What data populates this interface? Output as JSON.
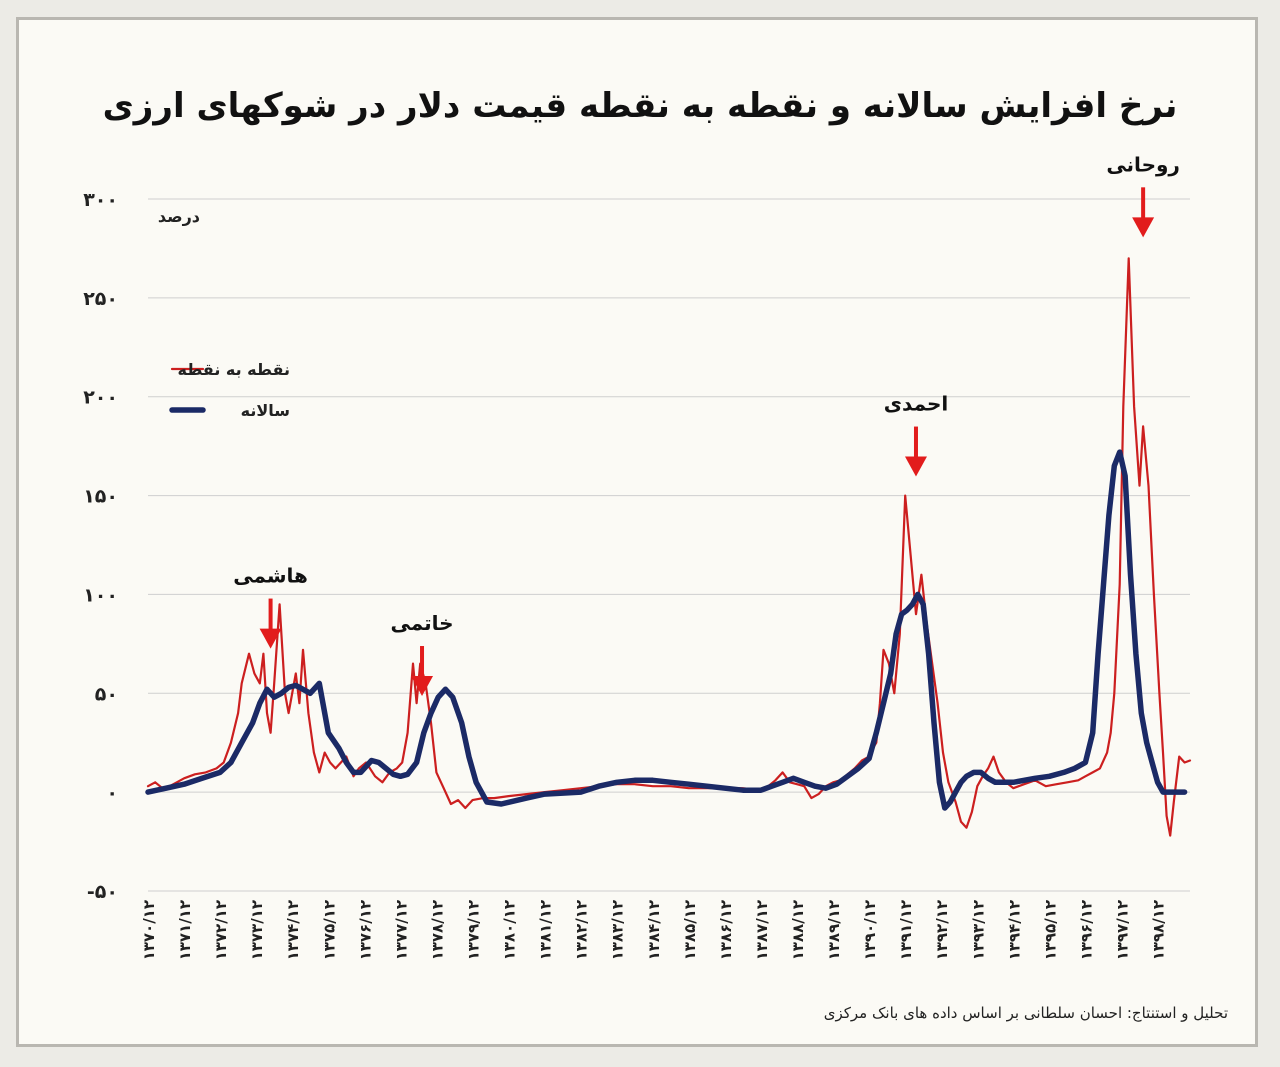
{
  "title": "نرخ افزایش سالانه و نقطه به نقطه قیمت دلار در شوکهای ارزی",
  "source": "تحلیل و استنتاج: احسان سلطانی بر اساس داده های بانک مرکزی",
  "colors": {
    "point": "#cc1f1f",
    "annual": "#1b2a66",
    "arrow": "#e21c1c",
    "grid": "#cfcfcf"
  },
  "chart_data": {
    "type": "line",
    "title": "نرخ افزایش سالانه و نقطه به نقطه قیمت دلار در شوکهای ارزی",
    "ylabel": "درصد",
    "ylim": [
      -50,
      300
    ],
    "yticks": [
      -50,
      0,
      50,
      100,
      150,
      200,
      250,
      300
    ],
    "ytick_labels": [
      "-۵۰",
      "۰",
      "۵۰",
      "۱۰۰",
      "۱۵۰",
      "۲۰۰",
      "۲۵۰",
      "۳۰۰"
    ],
    "xlim": [
      1370,
      1398.9
    ],
    "xticks": [
      1370,
      1371,
      1372,
      1373,
      1374,
      1375,
      1376,
      1377,
      1378,
      1379,
      1380,
      1381,
      1382,
      1383,
      1384,
      1385,
      1386,
      1387,
      1388,
      1389,
      1390,
      1391,
      1392,
      1393,
      1394,
      1395,
      1396,
      1397,
      1398
    ],
    "xtick_labels": [
      "۱۳۷۰/۱۲",
      "۱۳۷۱/۱۲",
      "۱۳۷۲/۱۲",
      "۱۳۷۳/۱۲",
      "۱۳۷۴/۱۲",
      "۱۳۷۵/۱۲",
      "۱۳۷۶/۱۲",
      "۱۳۷۷/۱۲",
      "۱۳۷۸/۱۲",
      "۱۳۷۹/۱۲",
      "۱۳۸۰/۱۲",
      "۱۳۸۱/۱۲",
      "۱۳۸۲/۱۲",
      "۱۳۸۳/۱۲",
      "۱۳۸۴/۱۲",
      "۱۳۸۵/۱۲",
      "۱۳۸۶/۱۲",
      "۱۳۸۷/۱۲",
      "۱۳۸۸/۱۲",
      "۱۳۸۹/۱۲",
      "۱۳۹۰/۱۲",
      "۱۳۹۱/۱۲",
      "۱۳۹۲/۱۲",
      "۱۳۹۳/۱۲",
      "۱۳۹۴/۱۲",
      "۱۳۹۵/۱۲",
      "۱۳۹۶/۱۲",
      "۱۳۹۷/۱۲",
      "۱۳۹۸/۱۲"
    ],
    "series": [
      {
        "name": "نقطه به نقطه",
        "color": "#cc1f1f",
        "x": [
          1370,
          1370.2,
          1370.4,
          1370.6,
          1370.8,
          1371,
          1371.3,
          1371.6,
          1371.9,
          1372.1,
          1372.3,
          1372.5,
          1372.6,
          1372.8,
          1372.95,
          1373.1,
          1373.2,
          1373.3,
          1373.4,
          1373.5,
          1373.65,
          1373.8,
          1373.9,
          1374.1,
          1374.2,
          1374.3,
          1374.45,
          1374.6,
          1374.75,
          1374.9,
          1375.05,
          1375.2,
          1375.35,
          1375.5,
          1375.7,
          1375.85,
          1376.05,
          1376.3,
          1376.5,
          1376.7,
          1376.9,
          1377.05,
          1377.2,
          1377.35,
          1377.45,
          1377.55,
          1377.7,
          1377.85,
          1378.0,
          1378.2,
          1378.4,
          1378.6,
          1378.8,
          1379,
          1379.3,
          1379.6,
          1380,
          1380.5,
          1381,
          1381.5,
          1382,
          1382.5,
          1383,
          1383.5,
          1384,
          1384.5,
          1385,
          1385.5,
          1386,
          1386.5,
          1387,
          1387.2,
          1387.4,
          1387.6,
          1387.8,
          1388,
          1388.2,
          1388.4,
          1388.6,
          1388.8,
          1389,
          1389.2,
          1389.4,
          1389.6,
          1389.8,
          1390.0,
          1390.1,
          1390.2,
          1390.3,
          1390.4,
          1390.55,
          1390.7,
          1390.85,
          1391.0,
          1391.15,
          1391.3,
          1391.45,
          1391.6,
          1391.75,
          1391.9,
          1392.05,
          1392.2,
          1392.4,
          1392.55,
          1392.7,
          1392.85,
          1393.0,
          1393.15,
          1393.3,
          1393.45,
          1393.6,
          1393.8,
          1394,
          1394.3,
          1394.6,
          1394.9,
          1395.2,
          1395.5,
          1395.8,
          1396.0,
          1396.2,
          1396.4,
          1396.6,
          1396.7,
          1396.8,
          1396.95,
          1397.05,
          1397.2,
          1397.35,
          1397.5,
          1397.6,
          1397.75,
          1397.9,
          1398.05,
          1398.15,
          1398.25,
          1398.35,
          1398.45,
          1398.6,
          1398.75,
          1398.9
        ],
        "values": [
          3,
          5,
          2,
          3,
          5,
          7,
          9,
          10,
          12,
          15,
          25,
          40,
          55,
          70,
          60,
          55,
          70,
          40,
          30,
          55,
          95,
          50,
          40,
          60,
          45,
          72,
          40,
          20,
          10,
          20,
          15,
          12,
          15,
          18,
          8,
          12,
          15,
          8,
          5,
          10,
          12,
          15,
          30,
          65,
          45,
          65,
          55,
          35,
          10,
          2,
          -6,
          -4,
          -8,
          -4,
          -3,
          -3,
          -2,
          -1,
          0,
          1,
          2,
          3,
          4,
          4,
          3,
          3,
          2,
          2,
          2,
          2,
          1,
          3,
          6,
          10,
          5,
          4,
          3,
          -3,
          -1,
          3,
          5,
          6,
          9,
          12,
          16,
          18,
          22,
          25,
          45,
          72,
          65,
          50,
          80,
          150,
          120,
          90,
          110,
          85,
          65,
          45,
          20,
          5,
          -5,
          -15,
          -18,
          -10,
          3,
          8,
          12,
          18,
          10,
          5,
          2,
          4,
          6,
          3,
          4,
          5,
          6,
          8,
          10,
          12,
          20,
          30,
          50,
          105,
          195,
          270,
          195,
          155,
          185,
          155,
          100,
          50,
          20,
          -12,
          -22,
          -5,
          18,
          15,
          16
        ]
      },
      {
        "name": "سالانه",
        "color": "#1b2a66",
        "x": [
          1370,
          1370.5,
          1371,
          1371.5,
          1372,
          1372.3,
          1372.6,
          1372.9,
          1373.1,
          1373.3,
          1373.5,
          1373.7,
          1373.9,
          1374.1,
          1374.3,
          1374.5,
          1374.75,
          1375.0,
          1375.3,
          1375.5,
          1375.7,
          1375.9,
          1376.2,
          1376.4,
          1376.6,
          1376.8,
          1377.0,
          1377.2,
          1377.45,
          1377.65,
          1377.85,
          1378.05,
          1378.25,
          1378.45,
          1378.7,
          1378.9,
          1379.1,
          1379.4,
          1379.8,
          1380.5,
          1381,
          1382,
          1382.5,
          1383,
          1383.5,
          1384,
          1384.5,
          1385,
          1385.5,
          1386,
          1386.5,
          1387,
          1387.3,
          1387.6,
          1387.9,
          1388.2,
          1388.5,
          1388.8,
          1389.1,
          1389.4,
          1389.7,
          1390.0,
          1390.2,
          1390.4,
          1390.6,
          1390.75,
          1390.9,
          1391.05,
          1391.2,
          1391.35,
          1391.5,
          1391.65,
          1391.8,
          1391.95,
          1392.1,
          1392.25,
          1392.4,
          1392.55,
          1392.7,
          1392.9,
          1393.1,
          1393.3,
          1393.5,
          1393.75,
          1394,
          1394.3,
          1394.6,
          1395.0,
          1395.4,
          1395.7,
          1396.0,
          1396.2,
          1396.35,
          1396.5,
          1396.65,
          1396.8,
          1396.95,
          1397.1,
          1397.25,
          1397.4,
          1397.55,
          1397.7,
          1397.85,
          1398.0,
          1398.15,
          1398.3,
          1398.45,
          1398.6,
          1398.75
        ],
        "values": [
          0,
          2,
          4,
          7,
          10,
          15,
          25,
          35,
          45,
          52,
          48,
          50,
          53,
          54,
          52,
          50,
          55,
          30,
          22,
          15,
          10,
          10,
          16,
          15,
          12,
          9,
          8,
          9,
          15,
          30,
          40,
          48,
          52,
          48,
          35,
          18,
          5,
          -5,
          -6,
          -3,
          -1,
          0,
          3,
          5,
          6,
          6,
          5,
          4,
          3,
          2,
          1,
          1,
          3,
          5,
          7,
          5,
          3,
          2,
          4,
          8,
          12,
          17,
          30,
          45,
          60,
          80,
          90,
          92,
          95,
          100,
          95,
          70,
          35,
          5,
          -8,
          -5,
          0,
          5,
          8,
          10,
          10,
          7,
          5,
          5,
          5,
          6,
          7,
          8,
          10,
          12,
          15,
          30,
          70,
          105,
          140,
          165,
          172,
          160,
          110,
          70,
          40,
          25,
          15,
          5,
          0,
          0,
          0,
          0,
          0
        ]
      }
    ],
    "annotations": [
      {
        "label": "هاشمی",
        "x": 1373.4,
        "y": 106
      },
      {
        "label": "خاتمی",
        "x": 1377.6,
        "y": 82
      },
      {
        "label": "احمدی",
        "x": 1391.3,
        "y": 193
      },
      {
        "label": "روحانی",
        "x": 1397.6,
        "y": 314
      }
    ]
  },
  "legend": {
    "point_label": "نقطه به نقطه",
    "annual_label": "سالانه"
  }
}
